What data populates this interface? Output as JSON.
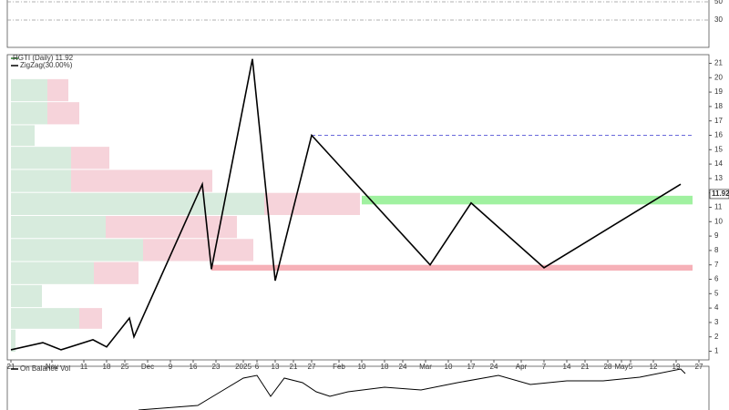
{
  "chart_data": {
    "type": "line",
    "title": "RGTI (Daily) 11.92",
    "last_price": 11.92,
    "xlim": [
      -0.8,
      153.2
    ],
    "ylim": [
      0.4,
      21.6
    ],
    "yticks": [
      1,
      2,
      3,
      4,
      5,
      6,
      7,
      8,
      9,
      10,
      11,
      12,
      13,
      14,
      15,
      16,
      17,
      18,
      19,
      20,
      21
    ],
    "xticks": [
      {
        "value": 0,
        "label": "21"
      },
      {
        "value": 9,
        "label": "Nov"
      },
      {
        "value": 16,
        "label": "11"
      },
      {
        "value": 21,
        "label": "18"
      },
      {
        "value": 25,
        "label": "25"
      },
      {
        "value": 30,
        "label": "Dec"
      },
      {
        "value": 35,
        "label": "9"
      },
      {
        "value": 40,
        "label": "16"
      },
      {
        "value": 45,
        "label": "23"
      },
      {
        "value": 51,
        "label": "2025"
      },
      {
        "value": 54,
        "label": "6"
      },
      {
        "value": 58,
        "label": "13"
      },
      {
        "value": 62,
        "label": "21"
      },
      {
        "value": 66,
        "label": "27"
      },
      {
        "value": 72,
        "label": "Feb"
      },
      {
        "value": 77,
        "label": "10"
      },
      {
        "value": 82,
        "label": "18"
      },
      {
        "value": 86,
        "label": "24"
      },
      {
        "value": 91,
        "label": "Mar"
      },
      {
        "value": 96,
        "label": "10"
      },
      {
        "value": 101,
        "label": "17"
      },
      {
        "value": 106,
        "label": "24"
      },
      {
        "value": 112,
        "label": "Apr"
      },
      {
        "value": 117,
        "label": "7"
      },
      {
        "value": 122,
        "label": "14"
      },
      {
        "value": 126,
        "label": "21"
      },
      {
        "value": 131,
        "label": "28"
      },
      {
        "value": 134,
        "label": "May"
      },
      {
        "value": 136,
        "label": "5"
      },
      {
        "value": 141,
        "label": "12"
      },
      {
        "value": 146,
        "label": "19"
      },
      {
        "value": 151,
        "label": "27"
      }
    ],
    "series": [
      {
        "name": "ZigZag(30.00%)",
        "color": "#000000",
        "x": [
          0,
          7,
          11,
          18,
          21,
          26,
          27,
          42,
          44,
          53,
          58,
          66,
          92,
          101,
          117,
          147
        ],
        "values": [
          1.1,
          1.6,
          1.1,
          1.8,
          1.3,
          3.3,
          2.0,
          12.6,
          6.7,
          21.3,
          5.9,
          16.0,
          7.0,
          11.3,
          6.8,
          12.6
        ]
      }
    ],
    "levels": [
      {
        "value": 16.0,
        "x_start": 66,
        "color": "#3a3ad0"
      }
    ],
    "bands": [
      {
        "low": 11.2,
        "high": 11.8,
        "x_start": 77,
        "color": "#8fee8f"
      },
      {
        "low": 6.6,
        "high": 7.0,
        "x_start": 44,
        "color": "#f5a3ab"
      }
    ],
    "volume_by_price": {
      "bounds": [
        19.9,
        18.3,
        16.7,
        15.2,
        13.6,
        12.0,
        10.4,
        8.8,
        7.2,
        5.6,
        4.0,
        2.5,
        0.9
      ],
      "up": [
        40,
        40,
        26,
        66,
        66,
        278,
        104,
        145,
        91,
        34,
        75,
        5
      ],
      "down": [
        23,
        35,
        0,
        42,
        155,
        105,
        144,
        121,
        49,
        0,
        25,
        0
      ],
      "up_color": "#d7ebdd",
      "down_color": "#f6d3da"
    },
    "obv": {
      "title": "On Balance Vol",
      "color": "#000000",
      "ylim": [
        0,
        48
      ],
      "x": [
        28,
        41,
        46,
        51,
        54,
        57,
        60,
        64,
        67,
        70,
        74,
        82,
        90,
        98,
        107,
        114,
        122,
        130,
        138,
        147,
        148
      ],
      "values": [
        0,
        5,
        20,
        35,
        38,
        15,
        35,
        30,
        20,
        15,
        20,
        25,
        22,
        30,
        38,
        28,
        32,
        32,
        36,
        45,
        40
      ]
    },
    "rsi": {
      "ylim": [
        0,
        52
      ],
      "yticks": [
        30,
        50
      ]
    }
  }
}
